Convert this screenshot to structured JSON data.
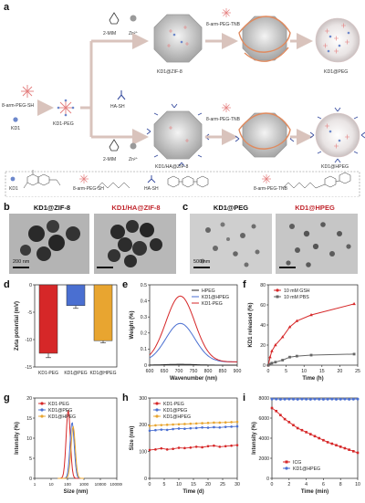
{
  "panels": {
    "a": "a",
    "b": "b",
    "c": "c",
    "d": "d",
    "e": "e",
    "f": "f",
    "g": "g",
    "h": "h",
    "i": "i"
  },
  "colors": {
    "kd1peg": "#d62728",
    "kd1atpeg": "#4a6fd1",
    "kd1athpeg": "#e8a530",
    "hpeg": "#222222",
    "gsh": "#d62728",
    "pbs": "#666666",
    "icg": "#d62728"
  },
  "schematic": {
    "top_label_2mim": "2-MIM",
    "top_label_zn": "Zn²⁺",
    "top_label_tnb": "8-arm-PEG-TNB",
    "top_label_zif8": "KD1@ZIF-8",
    "top_label_kd1peg": "KD1@PEG",
    "start_label_pegsh": "8-arm-PEG-SH",
    "start_label_kd1": "KD1",
    "start_label_kd1peg": "KD1-PEG",
    "bot_label_hash": "HA-SH",
    "bot_label_2mim": "2-MIM",
    "bot_label_zn": "Zn²⁺",
    "bot_label_tnb": "8-arm-PEG-TNB",
    "bot_label_ha": "KD1/HA@ZIF-8",
    "bot_label_hpeg": "KD1@HPEG",
    "legend_kd1": "KD1",
    "legend_pegsh": "8-arm-PEG-SH",
    "legend_hash": "HA-SH",
    "legend_tnb": "8-arm-PEG-TNB"
  },
  "tem_b": {
    "left_title": "KD1@ZIF-8",
    "right_title": "KD1/HA@ZIF-8",
    "scale": "200 nm"
  },
  "tem_c": {
    "left_title": "KD1@PEG",
    "right_title": "KD1@HPEG",
    "scale": "500 nm"
  },
  "chart_d": {
    "type": "bar",
    "ylabel": "Zeta potential (mV)",
    "categories": [
      "KD1-PEG",
      "KD1@PEG",
      "KD1@HPEG"
    ],
    "values": [
      -12.5,
      -3.8,
      -10.2
    ],
    "errors": [
      0.8,
      0.5,
      0.4
    ],
    "ylim": [
      -15,
      0
    ],
    "yticks": [
      0,
      -5,
      -10,
      -15
    ]
  },
  "chart_e": {
    "type": "line",
    "xlabel": "Wavenumber (nm)",
    "ylabel": "Weight (%)",
    "xlim": [
      600,
      900
    ],
    "ylim": [
      0,
      0.5
    ],
    "xticks": [
      600,
      650,
      700,
      750,
      800,
      850,
      900
    ],
    "yticks": [
      0.0,
      0.1,
      0.2,
      0.3,
      0.4,
      0.5
    ],
    "series": [
      {
        "name": "HPEG",
        "peak": 0.005,
        "center": 705
      },
      {
        "name": "KD1@HPEG",
        "peak": 0.24,
        "center": 705
      },
      {
        "name": "KD1-PEG",
        "peak": 0.41,
        "center": 705
      }
    ]
  },
  "chart_f": {
    "type": "line",
    "xlabel": "Time (h)",
    "ylabel": "KD1 released (%)",
    "xlim": [
      0,
      25
    ],
    "ylim": [
      0,
      80
    ],
    "xticks": [
      0,
      5,
      10,
      15,
      20,
      25
    ],
    "yticks": [
      0,
      20,
      40,
      60,
      80
    ],
    "series": [
      {
        "name": "10 mM GSH",
        "x": [
          0,
          0.5,
          1,
          2,
          4,
          6,
          8,
          12,
          24
        ],
        "y": [
          0,
          8,
          14,
          20,
          28,
          38,
          44,
          50,
          61
        ]
      },
      {
        "name": "10 mM PBS",
        "x": [
          0,
          0.5,
          1,
          2,
          4,
          6,
          8,
          12,
          24
        ],
        "y": [
          0,
          1,
          2,
          3,
          5,
          8,
          9,
          10,
          11
        ]
      }
    ]
  },
  "chart_g": {
    "type": "line",
    "xlabel": "Size (nm)",
    "ylabel": "Intensity (%)",
    "xlim_log": [
      1,
      100000
    ],
    "ylim": [
      0,
      20
    ],
    "xticks": [
      "1",
      "10",
      "100",
      "1000",
      "10000",
      "100000"
    ],
    "yticks": [
      0,
      5,
      10,
      15,
      20
    ],
    "series": [
      {
        "name": "KD1-PEG",
        "center_nm": 110,
        "peak": 17
      },
      {
        "name": "KD1@PEG",
        "center_nm": 190,
        "peak": 14
      },
      {
        "name": "KD1@HPEG",
        "center_nm": 220,
        "peak": 13
      }
    ]
  },
  "chart_h": {
    "type": "line",
    "xlabel": "Time (d)",
    "ylabel": "Size (nm)",
    "xlim": [
      0,
      30
    ],
    "ylim": [
      0,
      300
    ],
    "xticks": [
      0,
      5,
      10,
      15,
      20,
      25,
      30
    ],
    "yticks": [
      0,
      100,
      200,
      300
    ],
    "series": [
      {
        "name": "KD1-PEG",
        "values": [
          106,
          108,
          112,
          108,
          110,
          114,
          113,
          115,
          118,
          116,
          120,
          122,
          118,
          120,
          122,
          124
        ]
      },
      {
        "name": "KD1@PEG",
        "values": [
          178,
          180,
          182,
          181,
          184,
          186,
          185,
          187,
          188,
          190,
          189,
          191,
          190,
          192,
          193,
          194
        ]
      },
      {
        "name": "KD1@HPEG",
        "values": [
          196,
          198,
          199,
          200,
          201,
          202,
          203,
          204,
          205,
          206,
          207,
          208,
          208,
          209,
          210,
          211
        ]
      }
    ]
  },
  "chart_i": {
    "type": "line",
    "xlabel": "Time (min)",
    "ylabel": "Intensity (%)",
    "xlim": [
      0,
      10
    ],
    "ylim": [
      0,
      8000
    ],
    "xticks": [
      0,
      2,
      4,
      6,
      8,
      10
    ],
    "yticks": [
      0,
      2000,
      4000,
      6000,
      8000
    ],
    "series": [
      {
        "name": "ICG",
        "x": [
          0,
          0.5,
          1,
          1.5,
          2,
          2.5,
          3,
          3.5,
          4,
          4.5,
          5,
          5.5,
          6,
          6.5,
          7,
          7.5,
          8,
          8.5,
          9,
          9.5,
          10
        ],
        "y": [
          7000,
          6700,
          6300,
          5900,
          5600,
          5300,
          5000,
          4800,
          4600,
          4400,
          4200,
          4000,
          3800,
          3600,
          3450,
          3300,
          3150,
          3000,
          2850,
          2700,
          2550
        ]
      },
      {
        "name": "KD1@HPEG",
        "x": [
          0,
          0.5,
          1,
          1.5,
          2,
          2.5,
          3,
          3.5,
          4,
          4.5,
          5,
          5.5,
          6,
          6.5,
          7,
          7.5,
          8,
          8.5,
          9,
          9.5,
          10
        ],
        "y": [
          7900,
          7900,
          7880,
          7890,
          7900,
          7890,
          7880,
          7900,
          7890,
          7880,
          7900,
          7890,
          7880,
          7890,
          7900,
          7880,
          7890,
          7900,
          7880,
          7890,
          7900
        ]
      }
    ]
  }
}
